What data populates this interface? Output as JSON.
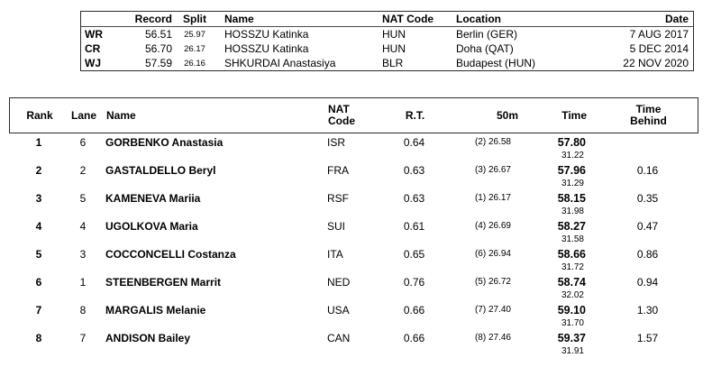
{
  "records_table": {
    "headers": {
      "record": "Record",
      "split": "Split",
      "name": "Name",
      "nat": "NAT Code",
      "location": "Location",
      "date": "Date"
    },
    "rows": [
      {
        "label": "WR",
        "record": "56.51",
        "split": "25.97",
        "name": "HOSSZU Katinka",
        "nat": "HUN",
        "location": "Berlin (GER)",
        "date": "7 AUG 2017"
      },
      {
        "label": "CR",
        "record": "56.70",
        "split": "26.17",
        "name": "HOSSZU Katinka",
        "nat": "HUN",
        "location": "Doha (QAT)",
        "date": "5 DEC 2014"
      },
      {
        "label": "WJ",
        "record": "57.59",
        "split": "26.16",
        "name": "SHKURDAI Anastasiya",
        "nat": "BLR",
        "location": "Budapest (HUN)",
        "date": "22 NOV 2020"
      }
    ]
  },
  "results_table": {
    "headers": {
      "rank": "Rank",
      "lane": "Lane",
      "name": "Name",
      "nat": "NAT\nCode",
      "rt": "R.T.",
      "fifty": "50m",
      "time": "Time",
      "behind": "Time\nBehind"
    },
    "rows": [
      {
        "rank": "1",
        "lane": "6",
        "name": "GORBENKO Anastasia",
        "nat": "ISR",
        "rt": "0.64",
        "fifty": "(2) 26.58",
        "time": "57.80",
        "split": "31.22",
        "behind": ""
      },
      {
        "rank": "2",
        "lane": "2",
        "name": "GASTALDELLO Beryl",
        "nat": "FRA",
        "rt": "0.63",
        "fifty": "(3) 26.67",
        "time": "57.96",
        "split": "31.29",
        "behind": "0.16"
      },
      {
        "rank": "3",
        "lane": "5",
        "name": "KAMENEVA Mariia",
        "nat": "RSF",
        "rt": "0.63",
        "fifty": "(1) 26.17",
        "time": "58.15",
        "split": "31.98",
        "behind": "0.35"
      },
      {
        "rank": "4",
        "lane": "4",
        "name": "UGOLKOVA Maria",
        "nat": "SUI",
        "rt": "0.61",
        "fifty": "(4) 26.69",
        "time": "58.27",
        "split": "31.58",
        "behind": "0.47"
      },
      {
        "rank": "5",
        "lane": "3",
        "name": "COCCONCELLI Costanza",
        "nat": "ITA",
        "rt": "0.65",
        "fifty": "(6) 26.94",
        "time": "58.66",
        "split": "31.72",
        "behind": "0.86"
      },
      {
        "rank": "6",
        "lane": "1",
        "name": "STEENBERGEN Marrit",
        "nat": "NED",
        "rt": "0.76",
        "fifty": "(5) 26.72",
        "time": "58.74",
        "split": "32.02",
        "behind": "0.94"
      },
      {
        "rank": "7",
        "lane": "8",
        "name": "MARGALIS Melanie",
        "nat": "USA",
        "rt": "0.66",
        "fifty": "(7) 27.40",
        "time": "59.10",
        "split": "31.70",
        "behind": "1.30"
      },
      {
        "rank": "8",
        "lane": "7",
        "name": "ANDISON Bailey",
        "nat": "CAN",
        "rt": "0.66",
        "fifty": "(8) 27.46",
        "time": "59.37",
        "split": "31.91",
        "behind": "1.57"
      }
    ]
  }
}
